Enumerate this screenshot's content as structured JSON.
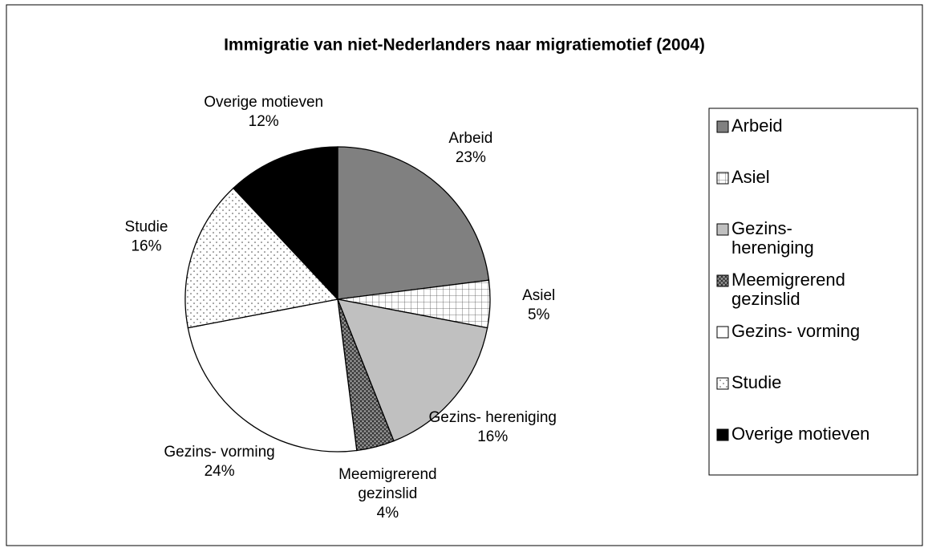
{
  "chart_data": {
    "type": "pie",
    "title": "Immigratie van niet-Nederlanders naar migratiemotief (2004)",
    "categories": [
      "Arbeid",
      "Asiel",
      "Gezins- hereniging",
      "Meemigrerend gezinslid",
      "Gezins- vorming",
      "Studie",
      "Overige motieven"
    ],
    "values": [
      23,
      5,
      16,
      4,
      24,
      16,
      12
    ],
    "value_labels": [
      "23%",
      "5%",
      "16%",
      "4%",
      "24%",
      "16%",
      "12%"
    ],
    "colors": [
      "#808080",
      "#ffffff",
      "#c0c0c0",
      "#808080",
      "#ffffff",
      "#ffffff",
      "#000000"
    ],
    "patterns": [
      null,
      "grid",
      null,
      "crosshatch",
      null,
      "dots",
      null
    ],
    "legend": "right"
  }
}
